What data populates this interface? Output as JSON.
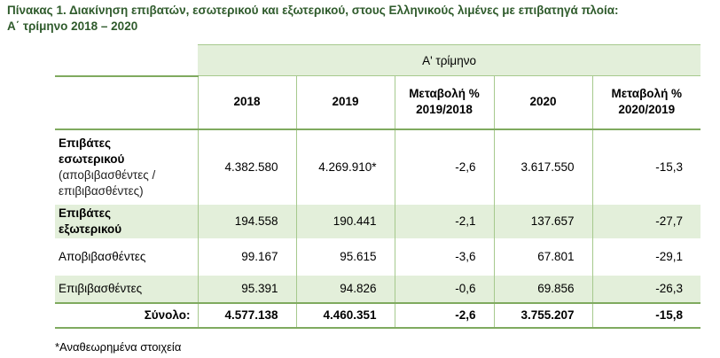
{
  "title": {
    "line1": "Πίνακας 1. Διακίνηση επιβατών, εσωτερικού και εξωτερικού, στους Ελληνικούς λιμένες με επιβατηγά πλοία:",
    "line2": "Α΄ τρίμηνο 2018 – 2020"
  },
  "table": {
    "quarter_header": "Α' τρίμηνο",
    "columns": [
      "2018",
      "2019",
      "Μεταβολή %",
      "2019/2018",
      "2020",
      "Μεταβολή %",
      "2020/2019"
    ],
    "rows": [
      {
        "label_bold_1": "Επιβάτες",
        "label_bold_2": "εσωτερικού",
        "label_sub_1": "(αποβιβασθέντες /",
        "label_sub_2": "επιβιβασθέντες)",
        "values": [
          "4.382.580",
          "4.269.910*",
          "-2,6",
          "3.617.550",
          "-15,3"
        ]
      },
      {
        "label_bold_1": "Επιβάτες",
        "label_bold_2": "εξωτερικού",
        "values": [
          "194.558",
          "190.441",
          "-2,1",
          "137.657",
          "-27,7"
        ]
      },
      {
        "label": "Αποβιβασθέντες",
        "values": [
          "99.167",
          "95.615",
          "-3,6",
          "67.801",
          "-29,1"
        ]
      },
      {
        "label": "Επιβιβασθέντες",
        "values": [
          "95.391",
          "94.826",
          "-0,6",
          "69.856",
          "-26,3"
        ]
      },
      {
        "label": "Σύνολο:",
        "values": [
          "4.577.138",
          "4.460.351",
          "-2,6",
          "3.755.207",
          "-15,8"
        ]
      }
    ]
  },
  "footnote": "*Αναθεωρημένα στοιχεία",
  "colors": {
    "title": "#2f5b2c",
    "band": "#e3efda",
    "rule": "#7faa5f"
  }
}
